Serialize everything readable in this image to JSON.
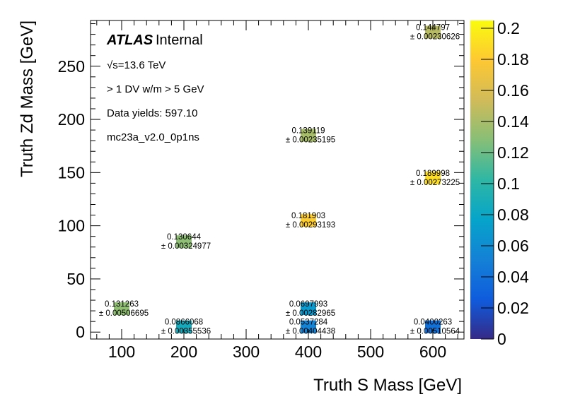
{
  "chart_data": {
    "type": "heatmap",
    "title": "",
    "xlabel": "Truth S Mass [GeV]",
    "ylabel": "Truth Zd Mass [GeV]",
    "xlim": [
      50,
      650
    ],
    "ylim": [
      -6.5,
      293
    ],
    "x_ticks": [
      100,
      200,
      300,
      400,
      500,
      600
    ],
    "y_ticks": [
      0,
      50,
      100,
      150,
      200,
      250
    ],
    "x_tick_labels": [
      "100",
      "200",
      "300",
      "400",
      "500",
      "600"
    ],
    "y_tick_labels": [
      "0",
      "50",
      "100",
      "150",
      "200",
      "250"
    ],
    "bin_width": 25,
    "bin_height": 12,
    "colorbar": {
      "range": [
        0,
        0.205
      ],
      "ticks": [
        0,
        0.02,
        0.04,
        0.06,
        0.08,
        0.1,
        0.12,
        0.14,
        0.16,
        0.18,
        0.2
      ],
      "tick_labels": [
        "0",
        "0.02",
        "0.04",
        "0.06",
        "0.08",
        "0.1",
        "0.12",
        "0.14",
        "0.16",
        "0.18",
        "0.2"
      ],
      "palette": [
        "#352a87",
        "#0f5cdd",
        "#1481d6",
        "#06a4ca",
        "#2eb7a4",
        "#87bf77",
        "#d1bb59",
        "#fec832",
        "#f9fb0e"
      ]
    },
    "cells": [
      {
        "x": 100,
        "y": 22,
        "value": 0.131263,
        "value_label": "0.131263",
        "error_label": "± 0.00506695"
      },
      {
        "x": 200,
        "y": 85,
        "value": 0.130644,
        "value_label": "0.130644",
        "error_label": "± 0.00324977"
      },
      {
        "x": 200,
        "y": 5,
        "value": 0.0866068,
        "value_label": "0.0866068",
        "error_label": "± 0.00355536"
      },
      {
        "x": 400,
        "y": 185,
        "value": 0.139119,
        "value_label": "0.139119",
        "error_label": "± 0.00235195"
      },
      {
        "x": 400,
        "y": 105,
        "value": 0.181903,
        "value_label": "0.181903",
        "error_label": "± 0.00293193"
      },
      {
        "x": 400,
        "y": 22,
        "value": 0.0697993,
        "value_label": "0.0697993",
        "error_label": "± 0.00282965"
      },
      {
        "x": 400,
        "y": 5,
        "value": 0.0537284,
        "value_label": "0.0537284",
        "error_label": "± 0.00404438"
      },
      {
        "x": 600,
        "y": 282,
        "value": 0.144797,
        "value_label": "0.144797",
        "error_label": "± 0.00230626"
      },
      {
        "x": 600,
        "y": 145,
        "value": 0.189998,
        "value_label": "0.189998",
        "error_label": "± 0.00273225"
      },
      {
        "x": 600,
        "y": 5,
        "value": 0.0400263,
        "value_label": "0.0400263",
        "error_label": "± 0.00510564"
      }
    ],
    "annotations": {
      "atlas_label": "ATLAS",
      "atlas_status": "Internal",
      "energy": "√s=13.6 TeV",
      "selection": "> 1 DV w/m > 5 GeV",
      "data_yields": "Data yields: 597.10",
      "sample": "mc23a_v2.0_0p1ns"
    },
    "grid": false,
    "legend": "none"
  }
}
